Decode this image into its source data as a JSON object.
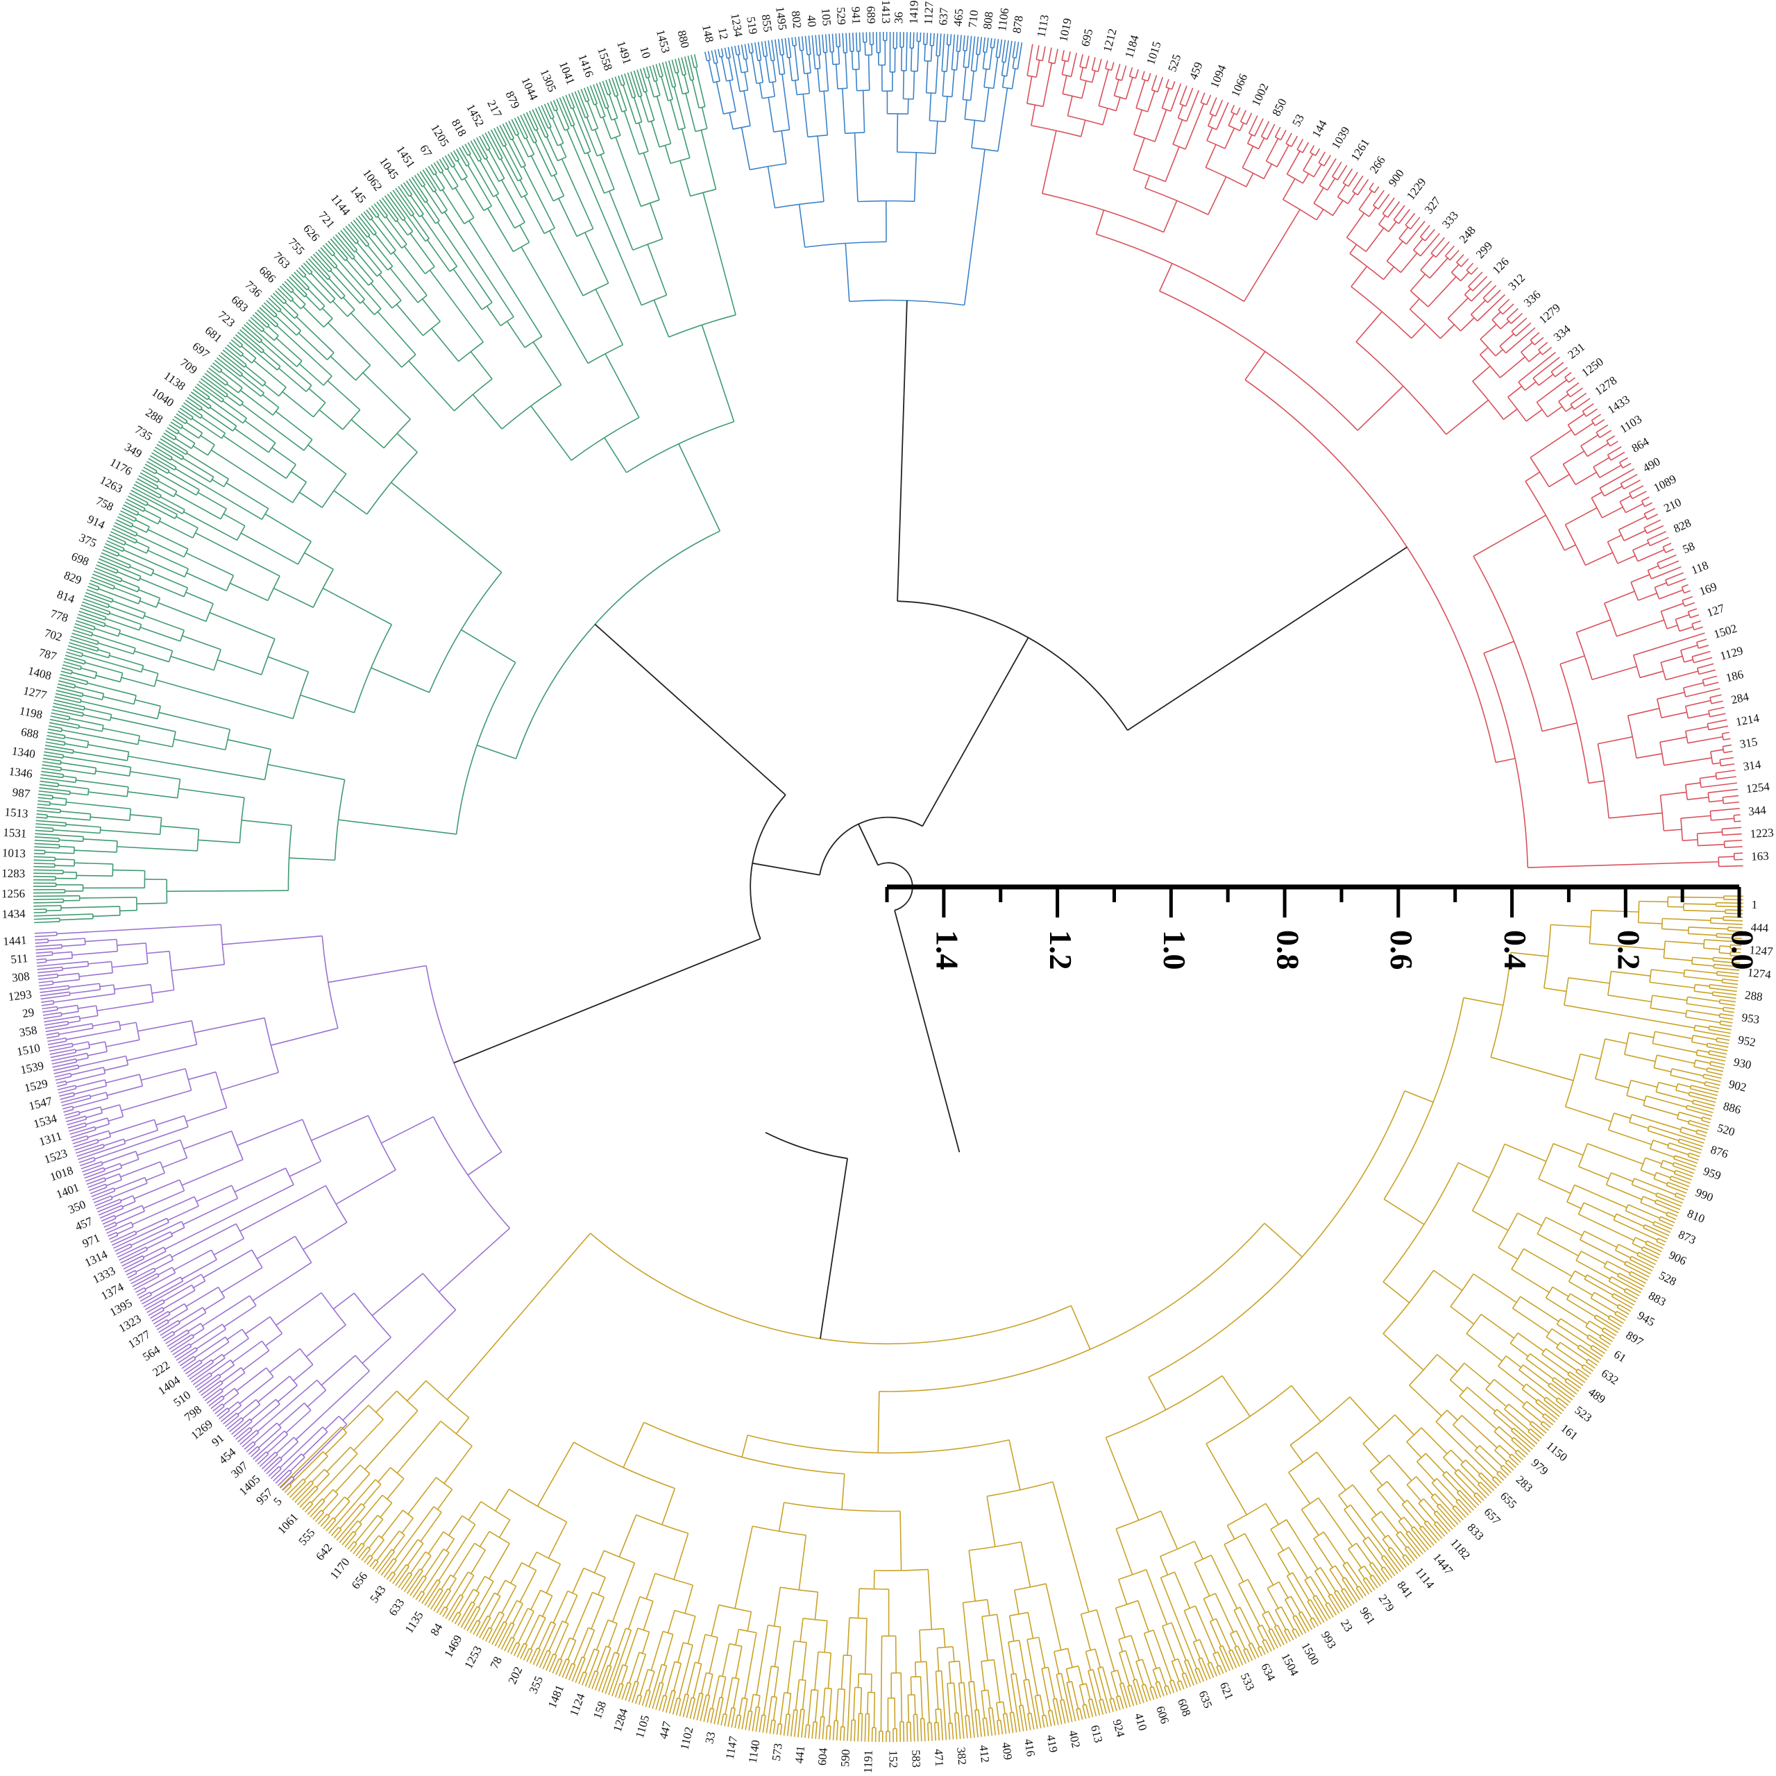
{
  "colors": {
    "red": "#d9505b",
    "blue": "#3b82c8",
    "green": "#3f9a72",
    "purple": "#9a72d0",
    "gold": "#c9a227",
    "root": "#222222",
    "scale": "#000000"
  },
  "scale_bar": {
    "ticks": [
      "0.0",
      "0.2",
      "0.4",
      "0.6",
      "0.8",
      "1.0",
      "1.2",
      "1.4"
    ]
  },
  "clusters": [
    {
      "name": "red",
      "color_key": "red",
      "leaf_count": 185,
      "labels": [
        "163",
        "1223",
        "344",
        "1254",
        "314",
        "315",
        "1214",
        "284",
        "186",
        "1129",
        "1502",
        "127",
        "169",
        "118",
        "58",
        "828",
        "210",
        "1089",
        "490",
        "864",
        "1103",
        "1433",
        "1278",
        "1250",
        "231",
        "334",
        "1279",
        "336",
        "312",
        "126",
        "299",
        "248",
        "333",
        "327",
        "1229",
        "900",
        "266",
        "1261",
        "1039",
        "144",
        "53",
        "850",
        "1002",
        "1066",
        "1094",
        "459",
        "525",
        "1015",
        "1184",
        "1212",
        "695",
        "1019",
        "1113"
      ]
    },
    {
      "name": "blue",
      "color_key": "blue",
      "leaf_count": 95,
      "labels": [
        "878",
        "1106",
        "808",
        "710",
        "465",
        "637",
        "1127",
        "1419",
        "36",
        "1413",
        "689",
        "941",
        "529",
        "105",
        "40",
        "802",
        "1495",
        "855",
        "519",
        "1234",
        "12",
        "148"
      ]
    },
    {
      "name": "green",
      "color_key": "green",
      "leaf_count": 360,
      "labels": [
        "880",
        "1453",
        "10",
        "1491",
        "1558",
        "1416",
        "1041",
        "1305",
        "1044",
        "879",
        "217",
        "1452",
        "818",
        "1205",
        "67",
        "1451",
        "1045",
        "1062",
        "145",
        "1144",
        "721",
        "626",
        "755",
        "763",
        "686",
        "736",
        "683",
        "723",
        "681",
        "697",
        "709",
        "1138",
        "1040",
        "288",
        "735",
        "349",
        "1176",
        "1263",
        "758",
        "914",
        "375",
        "698",
        "829",
        "814",
        "778",
        "702",
        "787",
        "1408",
        "1277",
        "1198",
        "688",
        "1340",
        "1346",
        "987",
        "1513",
        "1531",
        "1013",
        "1283",
        "1256",
        "1434"
      ]
    },
    {
      "name": "purple",
      "color_key": "purple",
      "leaf_count": 190,
      "labels": [
        "1441",
        "511",
        "308",
        "1293",
        "29",
        "358",
        "1510",
        "1539",
        "1529",
        "1547",
        "1534",
        "1311",
        "1523",
        "1018",
        "1401",
        "350",
        "457",
        "971",
        "1314",
        "1333",
        "1374",
        "1395",
        "1323",
        "1377",
        "564",
        "222",
        "1404",
        "510",
        "798",
        "1269",
        "91",
        "454",
        "307",
        "1405",
        "957"
      ]
    },
    {
      "name": "gold",
      "color_key": "gold",
      "leaf_count": 570,
      "labels": [
        "5",
        "1061",
        "555",
        "642",
        "1170",
        "656",
        "543",
        "633",
        "1135",
        "84",
        "1469",
        "1253",
        "78",
        "202",
        "355",
        "1481",
        "1124",
        "158",
        "1284",
        "1105",
        "447",
        "1102",
        "33",
        "1147",
        "1140",
        "573",
        "441",
        "604",
        "590",
        "1191",
        "152",
        "583",
        "471",
        "382",
        "412",
        "409",
        "416",
        "419",
        "402",
        "613",
        "924",
        "410",
        "606",
        "608",
        "635",
        "621",
        "533",
        "634",
        "1504",
        "1500",
        "993",
        "23",
        "961",
        "279",
        "841",
        "1114",
        "1447",
        "1182",
        "833",
        "657",
        "655",
        "283",
        "979",
        "1150",
        "161",
        "523",
        "489",
        "632",
        "61",
        "897",
        "945",
        "883",
        "528",
        "906",
        "873",
        "810",
        "990",
        "959",
        "876",
        "520",
        "886",
        "902",
        "930",
        "952",
        "953",
        "288",
        "1274",
        "1247",
        "444",
        "1"
      ]
    }
  ]
}
